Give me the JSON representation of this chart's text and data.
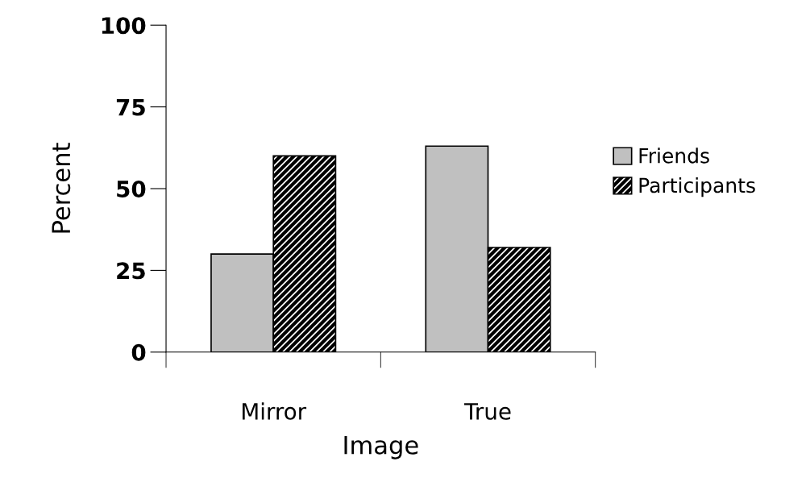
{
  "chart_data": {
    "type": "bar",
    "xlabel": "Image",
    "ylabel": "Percent",
    "categories": [
      "Mirror",
      "True"
    ],
    "series": [
      {
        "name": "Friends",
        "color": "#c0c0c0",
        "values": [
          30,
          63
        ]
      },
      {
        "name": "Participants",
        "color": "#000000",
        "values": [
          60,
          32
        ]
      }
    ],
    "ylim": [
      0,
      100
    ],
    "yticks": [
      0,
      25,
      50,
      75,
      100
    ],
    "grid": false,
    "legend": "right"
  }
}
